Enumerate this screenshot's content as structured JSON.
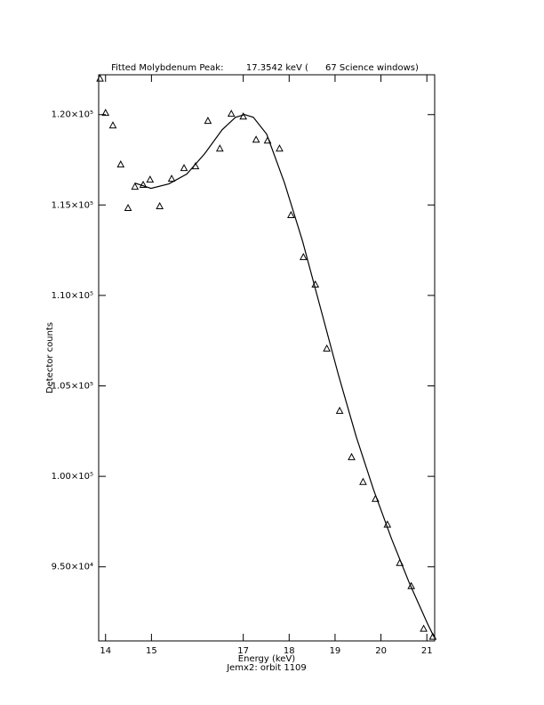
{
  "chart_data": {
    "type": "scatter",
    "title": "Fitted Molybdenum Peak:        17.3542 keV (      67 Science windows)",
    "x_label": "Energy (keV)",
    "subtitle": "Jemx2: orbit 1109",
    "y_label": "Detector counts",
    "marker": "triangle",
    "color": "#000000",
    "x": [
      13.88,
      14.0,
      14.16,
      14.33,
      14.49,
      14.64,
      14.82,
      14.97,
      15.18,
      15.44,
      15.71,
      15.96,
      16.23,
      16.49,
      16.74,
      17.0,
      17.28,
      17.53,
      17.79,
      18.04,
      18.31,
      18.57,
      18.82,
      19.1,
      19.36,
      19.61,
      19.88,
      20.14,
      20.41,
      20.66,
      20.93,
      21.13
    ],
    "values": [
      122000,
      120100,
      119410,
      117250,
      114840,
      116020,
      116120,
      116410,
      114940,
      116460,
      117050,
      117150,
      119660,
      118130,
      120050,
      119900,
      118620,
      118570,
      118130,
      114450,
      112130,
      110610,
      107070,
      103630,
      101070,
      99700,
      98760,
      97340,
      95220,
      93940,
      91580,
      91140
    ],
    "fit": {
      "x": [
        14.64,
        14.99,
        15.38,
        15.77,
        16.16,
        16.54,
        16.83,
        17.03,
        17.22,
        17.51,
        17.9,
        18.29,
        18.68,
        19.07,
        19.46,
        19.84,
        20.23,
        20.62,
        21.01,
        21.16
      ],
      "values": [
        116210,
        115920,
        116170,
        116710,
        117840,
        119160,
        119850,
        120000,
        119850,
        118920,
        116210,
        113020,
        109330,
        105640,
        102200,
        99250,
        96550,
        94090,
        91880,
        91100
      ]
    },
    "xlim": [
      13.85,
      21.17
    ],
    "ylim": [
      90900,
      122200
    ],
    "xticks": [
      14,
      15,
      17,
      18,
      19,
      20,
      21
    ],
    "yticks": [
      {
        "value": 95000,
        "label": "9.50×10⁴"
      },
      {
        "value": 100000,
        "label": "1.00×10⁵"
      },
      {
        "value": 105000,
        "label": "1.05×10⁵"
      },
      {
        "value": 110000,
        "label": "1.10×10⁵"
      },
      {
        "value": 115000,
        "label": "1.15×10⁵"
      },
      {
        "value": 120000,
        "label": "1.20×10⁵"
      }
    ]
  }
}
